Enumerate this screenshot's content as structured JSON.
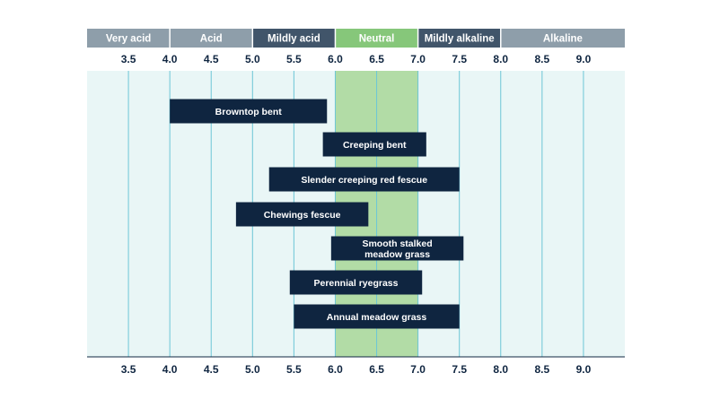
{
  "chart_data": {
    "type": "range-bar",
    "title": "",
    "xlabel": "",
    "ylabel": "",
    "xlim": [
      3.0,
      9.5
    ],
    "x_ticks": [
      "3.5",
      "4.0",
      "4.5",
      "5.0",
      "5.5",
      "6.0",
      "6.5",
      "7.0",
      "7.5",
      "8.0",
      "8.5",
      "9.0"
    ],
    "x_tick_values": [
      3.5,
      4.0,
      4.5,
      5.0,
      5.5,
      6.0,
      6.5,
      7.0,
      7.5,
      8.0,
      8.5,
      9.0
    ],
    "grid": true,
    "highlight_range": [
      6.0,
      7.0
    ],
    "highlight_color": "#b2dca6",
    "plot_background": "#e9f6f6",
    "gridline_color": "#6dc6d6",
    "bar_color": "#0f2540",
    "scale_bands": [
      {
        "label": "Very acid",
        "start": 3.0,
        "end": 4.0,
        "color": "#8e9eaa"
      },
      {
        "label": "Acid",
        "start": 4.0,
        "end": 5.0,
        "color": "#8e9eaa"
      },
      {
        "label": "Mildly acid",
        "start": 5.0,
        "end": 6.0,
        "color": "#41556a"
      },
      {
        "label": "Neutral",
        "start": 6.0,
        "end": 7.0,
        "color": "#86c77a"
      },
      {
        "label": "Mildly alkaline",
        "start": 7.0,
        "end": 8.0,
        "color": "#41556a"
      },
      {
        "label": "Alkaline",
        "start": 8.0,
        "end": 9.5,
        "color": "#8e9eaa"
      }
    ],
    "series": [
      {
        "label": [
          "Browntop bent"
        ],
        "start": 4.0,
        "end": 5.9
      },
      {
        "label": [
          "Creeping bent"
        ],
        "start": 5.85,
        "end": 7.1
      },
      {
        "label": [
          "Slender creeping red fescue"
        ],
        "start": 5.2,
        "end": 7.5
      },
      {
        "label": [
          "Chewings fescue"
        ],
        "start": 4.8,
        "end": 6.4
      },
      {
        "label": [
          "Smooth stalked",
          "meadow grass"
        ],
        "start": 5.95,
        "end": 7.55
      },
      {
        "label": [
          "Perennial ryegrass"
        ],
        "start": 5.45,
        "end": 7.05
      },
      {
        "label": [
          "Annual meadow grass"
        ],
        "start": 5.5,
        "end": 7.5
      }
    ]
  }
}
